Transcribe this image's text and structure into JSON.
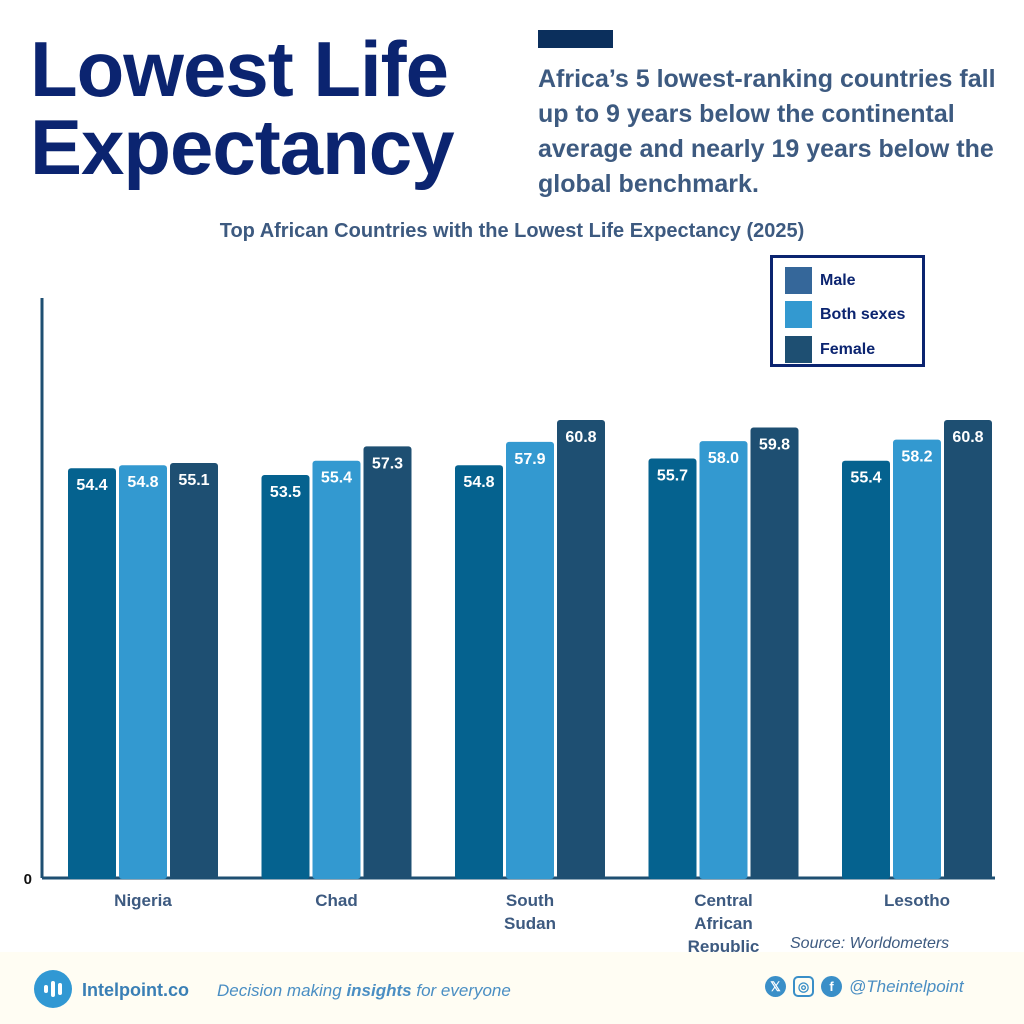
{
  "header": {
    "title_line1": "Lowest Life",
    "title_line2": "Expectancy",
    "subtitle": "Africa’s 5 lowest-ranking countries fall up to 9 years below the continental average and nearly 19 years below the global benchmark."
  },
  "chart_data": {
    "type": "bar",
    "title": "Top African Countries with the Lowest Life Expectancy (2025)",
    "categories": [
      "Nigeria",
      "Chad",
      "South Sudan",
      "Central African Republic",
      "Lesotho"
    ],
    "category_lines": [
      [
        "Nigeria"
      ],
      [
        "Chad"
      ],
      [
        "South",
        "Sudan"
      ],
      [
        "Central",
        "African",
        "Republic"
      ],
      [
        "Lesotho"
      ]
    ],
    "series": [
      {
        "name": "Male",
        "color": "#05628f",
        "values": [
          54.4,
          53.5,
          54.8,
          55.7,
          55.4
        ]
      },
      {
        "name": "Both sexes",
        "color": "#3399d0",
        "values": [
          54.8,
          55.4,
          57.9,
          58.0,
          58.2
        ]
      },
      {
        "name": "Female",
        "color": "#1e4f72",
        "values": [
          55.1,
          57.3,
          60.8,
          59.8,
          60.8
        ]
      }
    ],
    "y_tick_labels": [
      "0"
    ],
    "ylim": [
      0,
      77
    ],
    "grid": false,
    "legend_position": "top-right"
  },
  "legend": {
    "colors": [
      "#35679a",
      "#3399d0",
      "#1e4f72"
    ]
  },
  "source": "Source: Worldometers",
  "footer": {
    "brand": "Intelpoint.co",
    "tag_pre": "Decision making ",
    "tag_bold": "insights",
    "tag_post": " for everyone",
    "handle": "@Theintelpoint",
    "icons": [
      "x-icon",
      "instagram-icon",
      "facebook-icon"
    ]
  }
}
